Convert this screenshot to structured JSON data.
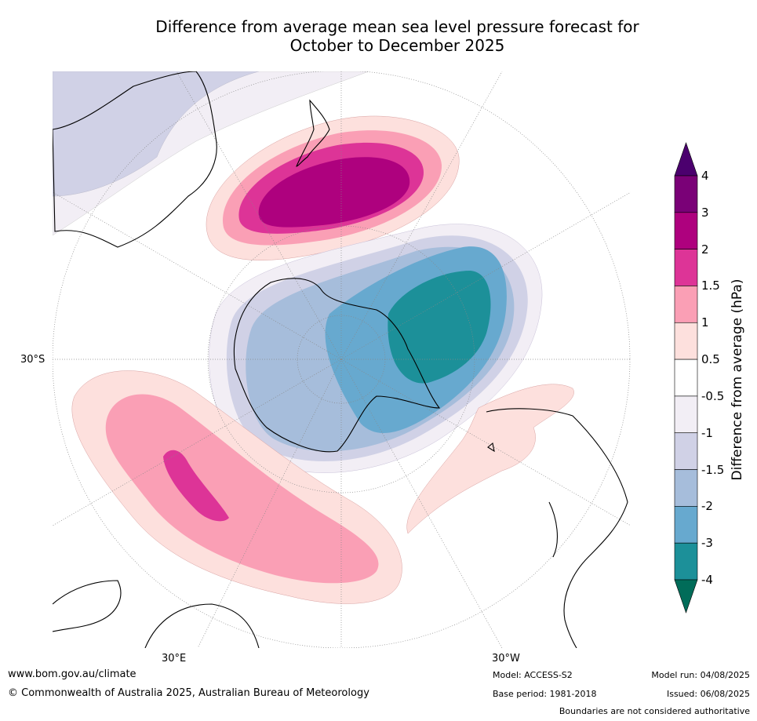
{
  "title": {
    "line1": "Difference from average mean sea level pressure forecast for",
    "line2": "October to December 2025"
  },
  "map": {
    "longitude_labels": [
      "30°S",
      "30°E",
      "30°W"
    ]
  },
  "colorbar": {
    "title": "Difference from average (hPa)",
    "tick_labels": [
      "4",
      "3",
      "2",
      "1.5",
      "1",
      "0.5",
      "-0.5",
      "-1",
      "-1.5",
      "-2",
      "-3",
      "-4"
    ],
    "colors": [
      "#4b006e",
      "#7a0177",
      "#ae017e",
      "#dd3497",
      "#fa9fb5",
      "#fde0dd",
      "#ffffff",
      "#f2eef5",
      "#d0d1e6",
      "#a6bddb",
      "#67a9cf",
      "#1c9099",
      "#016c59"
    ]
  },
  "footer": {
    "url": "www.bom.gov.au/climate",
    "copyright": "© Commonwealth of Australia 2025, Australian Bureau of Meteorology",
    "model": "Model: ACCESS-S2",
    "base_period": "Base period: 1981-2018",
    "model_run": "Model run: 04/08/2025",
    "issued": "Issued: 06/08/2025",
    "disclaimer": "Boundaries are not considered authoritative"
  }
}
